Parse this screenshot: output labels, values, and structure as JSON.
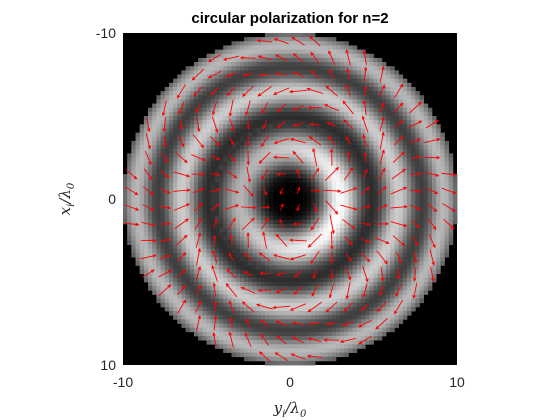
{
  "chart_data": {
    "type": "heatmap",
    "title": "circular polarization for n=2",
    "xlabel": {
      "main": "y",
      "sub1": "i",
      "slash": "/",
      "lambda": "λ",
      "sub2": "0"
    },
    "ylabel": {
      "main": "x",
      "sub1": "i",
      "slash": "/",
      "lambda": "λ",
      "sub2": "0"
    },
    "xlim": [
      -10,
      10
    ],
    "ylim": [
      -10,
      10
    ],
    "y_axis_reversed": true,
    "x_ticks": [
      "-10",
      "0",
      "10"
    ],
    "y_ticks": [
      "-10",
      "0",
      "10"
    ],
    "colormap": "gray",
    "overlay": "quiver",
    "grid": false,
    "field": {
      "aperture_radius": 10,
      "bright_rings": [
        {
          "radius": 3.0,
          "width": 1.25,
          "intensity": 1.0
        },
        {
          "radius": 6.5,
          "width": 1.05,
          "intensity": 0.8
        },
        {
          "radius": 9.2,
          "width": 0.95,
          "intensity": 0.72
        }
      ],
      "dark_rings": [
        5.0,
        8.0
      ],
      "topological_charge": 2
    },
    "quiver": {
      "color": "#ff0000",
      "grid_spacing": 1.0,
      "radius_limit": 10
    }
  }
}
